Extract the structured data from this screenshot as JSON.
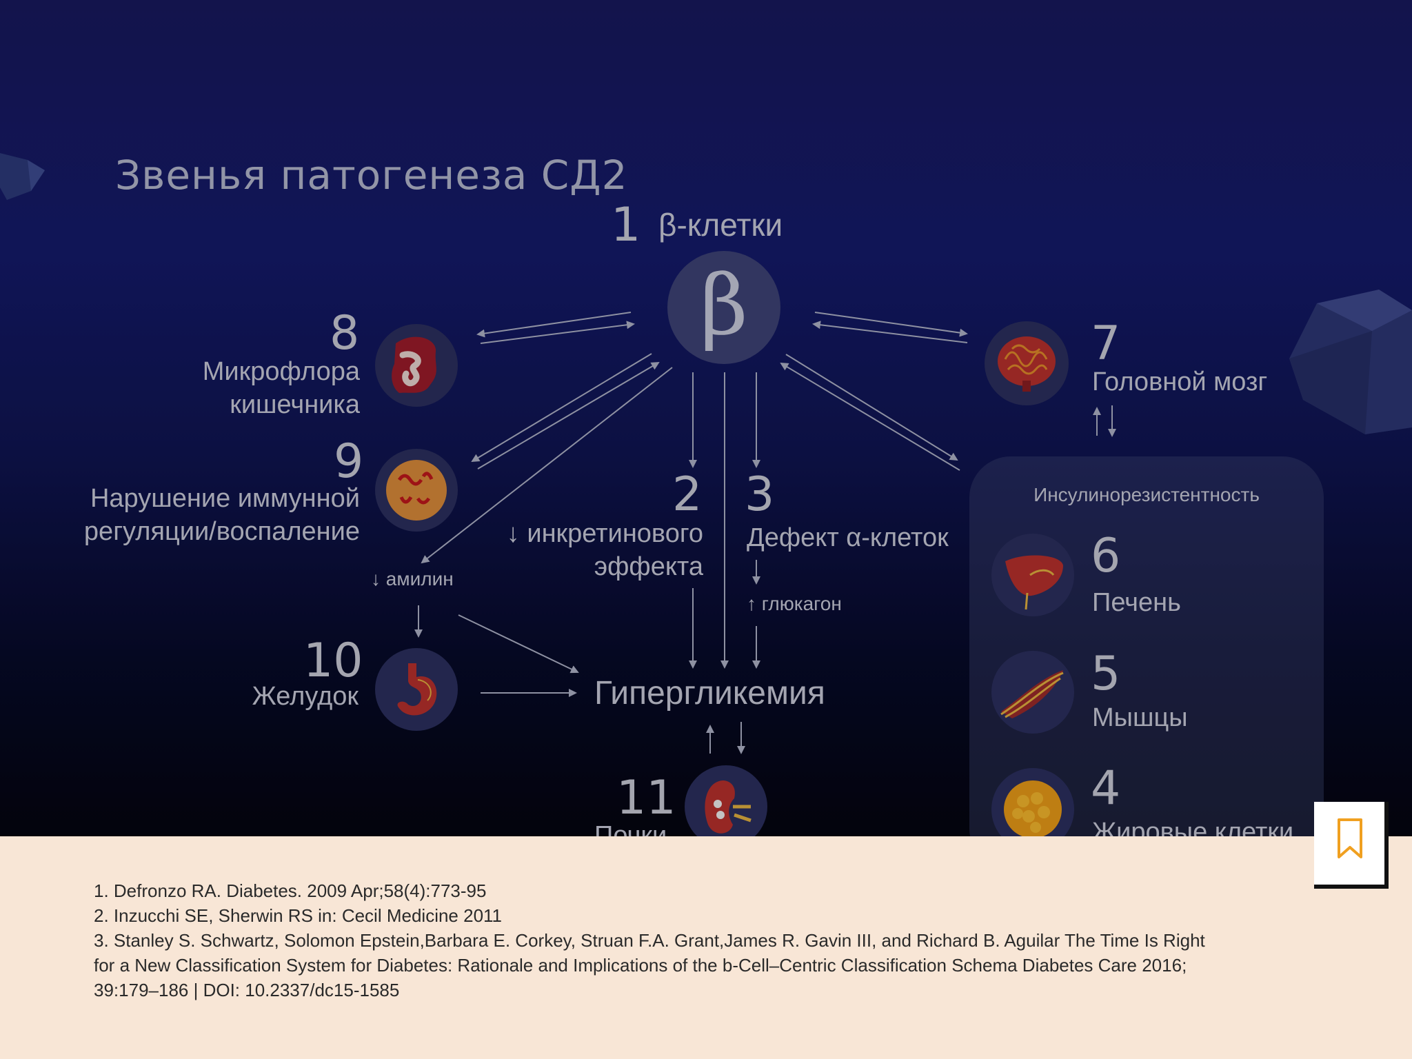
{
  "title": "Звенья патогенеза СД2",
  "nodes": {
    "beta": {
      "num": "1",
      "label": "β-клетки",
      "symbol": "β"
    },
    "incretin": {
      "num": "2",
      "label": "↓ инкретинового\nэффекта"
    },
    "alpha": {
      "num": "3",
      "label": "Дефект α-клеток"
    },
    "fat": {
      "num": "4",
      "label": "Жировые клетки"
    },
    "muscle": {
      "num": "5",
      "label": "Мышцы"
    },
    "liver": {
      "num": "6",
      "label": "Печень"
    },
    "brain": {
      "num": "7",
      "label": "Головной мозг"
    },
    "microflora": {
      "num": "8",
      "label": "Микрофлора\nкишечника"
    },
    "immune": {
      "num": "9",
      "label": "Нарушение иммунной\nрегуляции/воспаление"
    },
    "stomach": {
      "num": "10",
      "label": "Желудок"
    },
    "kidney": {
      "num": "11",
      "label": "Почки"
    }
  },
  "amylin": "↓ амилин",
  "glucagon": "↑ глюкагон",
  "hyperglycemia": "Гипергликемия",
  "insulin_resistance": "Инсулинорезистентность",
  "references": [
    "1. Defronzo RA. Diabetes. 2009 Apr;58(4):773-95",
    "2. Inzucchi SE, Sherwin RS in: Cecil Medicine 2011",
    "3. Stanley S. Schwartz, Solomon Epstein,Barbara E. Corkey, Struan F.A. Grant,James R. Gavin III, and Richard B. Aguilar The Time Is Right",
    "for a New Classification System for Diabetes: Rationale and Implications of the b-Cell–Centric Classification Schema Diabetes Care 2016;",
    "39:179–186 | DOI: 10.2337/dc15-1585"
  ],
  "colors": {
    "accent": "#f0a020",
    "background_top": "#18195d",
    "footer": "#f8e6d6"
  },
  "icons": [
    "bookmark-icon"
  ]
}
